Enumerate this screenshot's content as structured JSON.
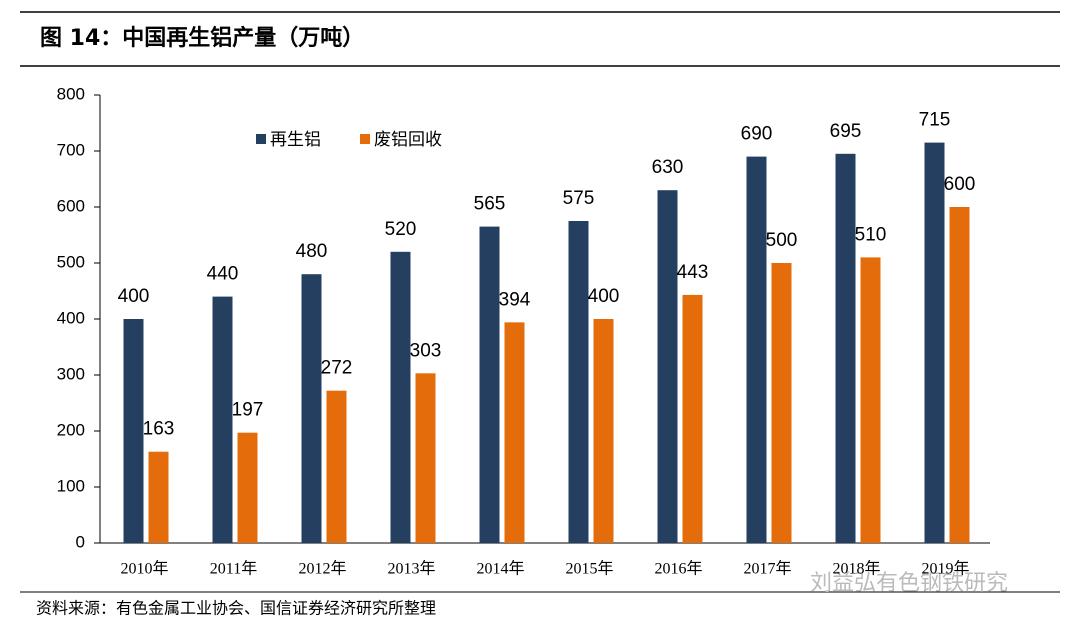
{
  "chart_data": {
    "type": "bar",
    "title": "图 14：中国再生铝产量（万吨）",
    "source": "资料来源：有色金属工业协会、国信证券经济研究所整理",
    "watermark": "刘益弘有色钢铁研究",
    "categories": [
      "2010年",
      "2011年",
      "2012年",
      "2013年",
      "2014年",
      "2015年",
      "2016年",
      "2017年",
      "2018年",
      "2019年"
    ],
    "series": [
      {
        "name": "再生铝",
        "color": "#243f60",
        "values": [
          400,
          440,
          480,
          520,
          565,
          575,
          630,
          690,
          695,
          715
        ]
      },
      {
        "name": "废铝回收",
        "color": "#e46c0a",
        "values": [
          163,
          197,
          272,
          303,
          394,
          400,
          443,
          500,
          510,
          600
        ]
      }
    ],
    "ylim": [
      0,
      800
    ],
    "yticks": [
      0,
      100,
      200,
      300,
      400,
      500,
      600,
      700,
      800
    ],
    "grid": false
  }
}
